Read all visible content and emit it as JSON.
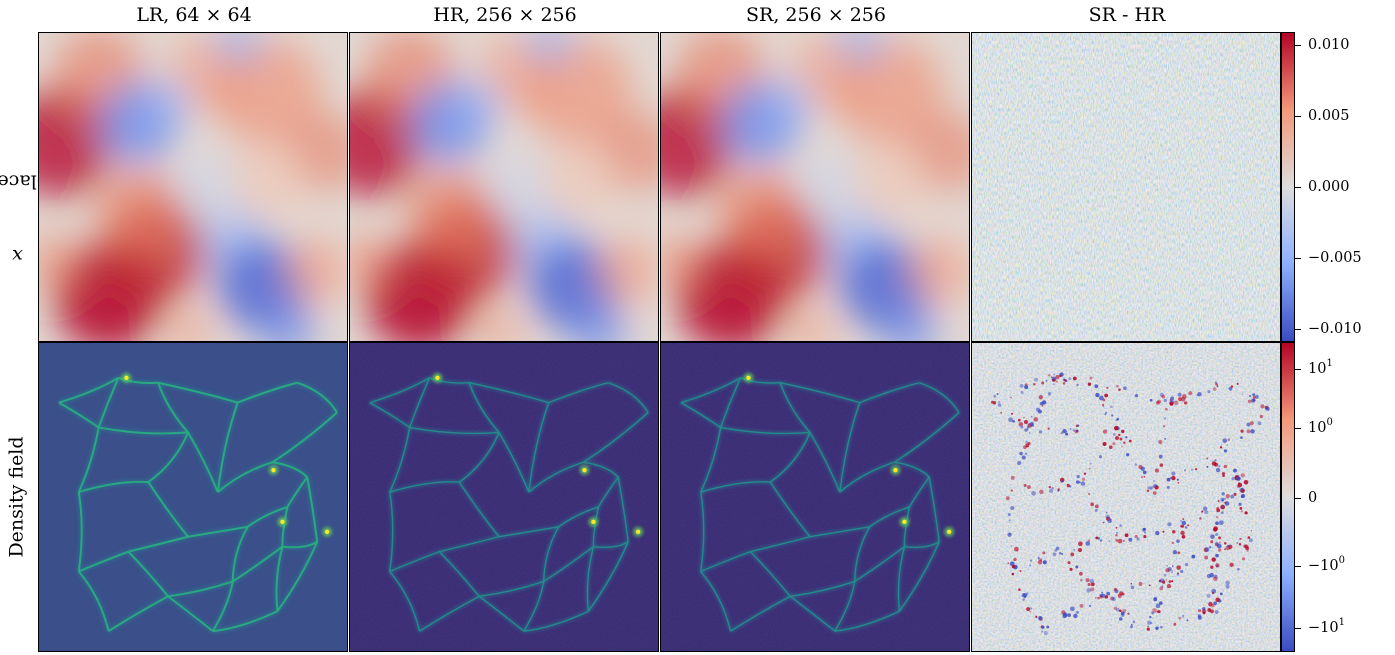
{
  "columns": [
    {
      "label": "LR, 64 × 64"
    },
    {
      "label": "HR, 256 × 256"
    },
    {
      "label": "SR, 256 × 256"
    },
    {
      "label": "SR - HR"
    }
  ],
  "rows": [
    {
      "var": "x",
      "label": "-Displacement"
    },
    {
      "label": "Density field"
    }
  ],
  "colorbars": {
    "top": {
      "colormap": "coolwarm",
      "colors": [
        "#3b4cc0",
        "#dddddd",
        "#b40426"
      ],
      "ticks": [
        "0.010",
        "0.005",
        "0.000",
        "−0.005",
        "−0.010"
      ]
    },
    "bottom": {
      "colormap": "coolwarm",
      "colors": [
        "#3b4cc0",
        "#dddddd",
        "#b40426"
      ],
      "ticks": [
        {
          "mantissa": "10",
          "exponent": "1"
        },
        {
          "mantissa": "10",
          "exponent": "0"
        },
        {
          "mantissa": "0",
          "exponent": ""
        },
        {
          "mantissa": "−10",
          "exponent": "0"
        },
        {
          "mantissa": "−10",
          "exponent": "1"
        }
      ]
    }
  },
  "panel_images": [
    {
      "id": "lr-displacement",
      "colormap": "coolwarm"
    },
    {
      "id": "hr-displacement",
      "colormap": "coolwarm"
    },
    {
      "id": "sr-displacement",
      "colormap": "coolwarm"
    },
    {
      "id": "residual-displacement",
      "colormap": "coolwarm"
    },
    {
      "id": "lr-density",
      "colormap": "viridis"
    },
    {
      "id": "hr-density",
      "colormap": "viridis"
    },
    {
      "id": "sr-density",
      "colormap": "viridis"
    },
    {
      "id": "residual-density",
      "colormap": "coolwarm"
    }
  ]
}
